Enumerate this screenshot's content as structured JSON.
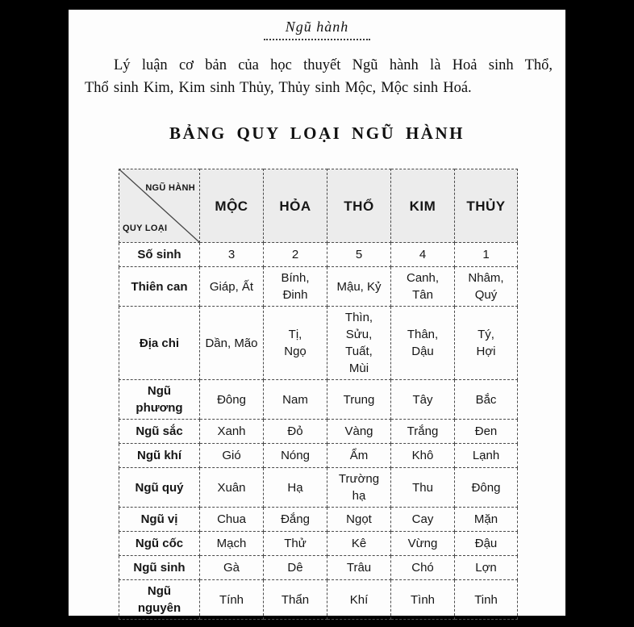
{
  "page": {
    "chapter_header": "Ngũ hành",
    "intro": {
      "line1": "Lý luận cơ bản của học thuyết Ngũ hành là Hoả sinh Thổ,",
      "line2": "Thổ sinh Kim, Kim sinh Thủy, Thủy sinh Mộc, Mộc sinh Hoá."
    },
    "table_title": "BẢNG QUY LOẠI NGŨ HÀNH"
  },
  "table": {
    "corner": {
      "top_right": "NGŨ HÀNH",
      "bottom_left": "QUY LOẠI"
    },
    "col_headers": [
      "MỘC",
      "HỎA",
      "THỔ",
      "KIM",
      "THỦY"
    ],
    "rows": [
      {
        "label": "Số sinh",
        "values": [
          "3",
          "2",
          "5",
          "4",
          "1"
        ]
      },
      {
        "label": "Thiên can",
        "values": [
          "Giáp, Ất",
          "Bính,\nĐinh",
          "Mậu, Kỷ",
          "Canh,\nTân",
          "Nhâm,\nQuý"
        ]
      },
      {
        "label": "Địa chi",
        "values": [
          "Dần, Mão",
          "Tị,\nNgọ",
          "Thìn,\nSửu,\nTuất,\nMùi",
          "Thân,\nDậu",
          "Tý,\nHợi"
        ]
      },
      {
        "label": "Ngũ\nphương",
        "values": [
          "Đông",
          "Nam",
          "Trung",
          "Tây",
          "Bắc"
        ]
      },
      {
        "label": "Ngũ sắc",
        "values": [
          "Xanh",
          "Đỏ",
          "Vàng",
          "Trắng",
          "Đen"
        ]
      },
      {
        "label": "Ngũ khí",
        "values": [
          "Gió",
          "Nóng",
          "Ẩm",
          "Khô",
          "Lạnh"
        ]
      },
      {
        "label": "Ngũ quý",
        "values": [
          "Xuân",
          "Hạ",
          "Trường\nhạ",
          "Thu",
          "Đông"
        ]
      },
      {
        "label": "Ngũ vị",
        "values": [
          "Chua",
          "Đắng",
          "Ngọt",
          "Cay",
          "Mặn"
        ]
      },
      {
        "label": "Ngũ cốc",
        "values": [
          "Mạch",
          "Thử",
          "Kê",
          "Vừng",
          "Đậu"
        ]
      },
      {
        "label": "Ngũ sinh",
        "values": [
          "Gà",
          "Dê",
          "Trâu",
          "Chó",
          "Lợn"
        ]
      },
      {
        "label": "Ngũ\nnguyên",
        "values": [
          "Tính",
          "Thẩn",
          "Khí",
          "Tình",
          "Tinh"
        ]
      }
    ],
    "colors": {
      "page_bg": "#fdfdfd",
      "frame_bg": "#000000",
      "header_bg": "#ececec",
      "border": "#4a4a4a",
      "text": "#161616"
    }
  }
}
